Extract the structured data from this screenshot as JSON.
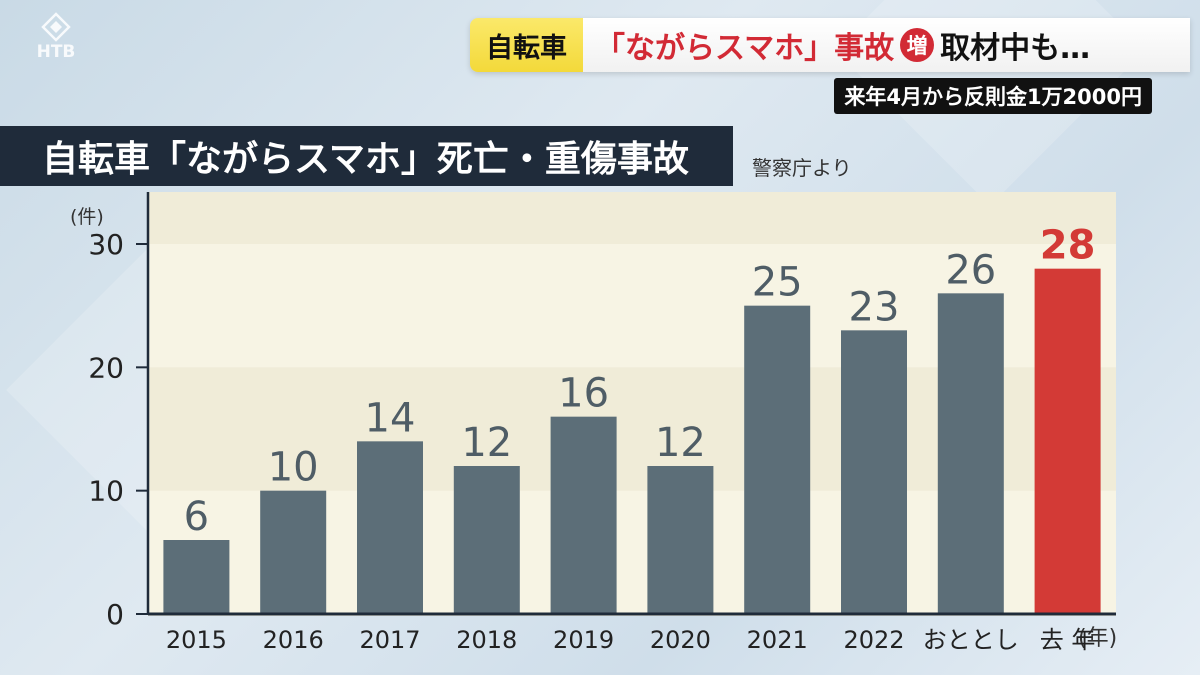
{
  "logo": {
    "text": "HTB"
  },
  "headline": {
    "topic": "自転車",
    "main_red": "「ながらスマホ」事故",
    "badge": "増",
    "rest": "取材中も…",
    "subline": "来年4月から反則金1万2000円"
  },
  "title": "自転車「ながらスマホ」死亡・重傷事故",
  "source": "警察庁より",
  "colors": {
    "bar": "#5c6e78",
    "highlight": "#d33a36",
    "title_bg": "#1f2b3a",
    "plot_bg": "#f7f4e4"
  },
  "chart_data": {
    "type": "bar",
    "title": "自転車「ながらスマホ」死亡・重傷事故",
    "ylabel": "(件)",
    "xlabel": "(年)",
    "categories": [
      "2015",
      "2016",
      "2017",
      "2018",
      "2019",
      "2020",
      "2021",
      "2022",
      "おととし",
      "去 年"
    ],
    "values": [
      6,
      10,
      14,
      12,
      16,
      12,
      25,
      23,
      26,
      28
    ],
    "highlight_index": 9,
    "ylim": [
      0,
      30
    ],
    "yticks": [
      0,
      10,
      20,
      30
    ],
    "grid": false,
    "legend": "none"
  }
}
